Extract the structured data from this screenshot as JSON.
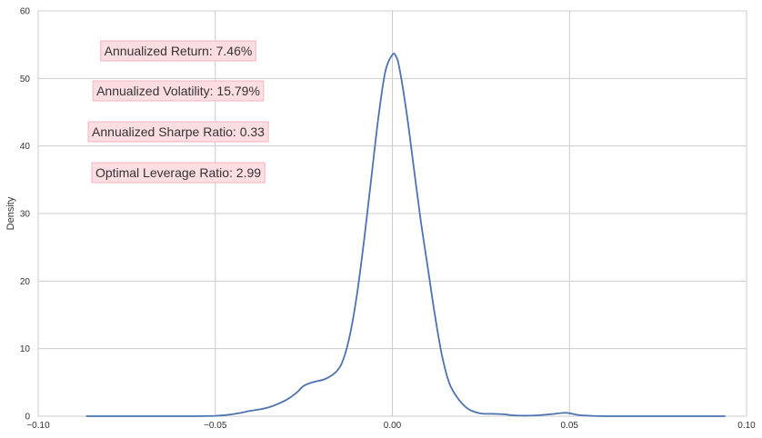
{
  "chart_data": {
    "type": "line",
    "title": "",
    "xlabel": "",
    "ylabel": "Density",
    "xlim": [
      -0.1,
      0.1
    ],
    "ylim": [
      0,
      60
    ],
    "grid": true,
    "x_ticks": [
      -0.1,
      -0.05,
      0.0,
      0.05,
      0.1
    ],
    "x_tick_labels": [
      "−0.10",
      "−0.05",
      "0.00",
      "0.05",
      "0.10"
    ],
    "y_ticks": [
      0,
      10,
      20,
      30,
      40,
      50,
      60
    ],
    "y_tick_labels": [
      "0",
      "10",
      "20",
      "30",
      "40",
      "50",
      "60"
    ],
    "series": [
      {
        "color": "#4c72b0",
        "x": [
          -0.0865,
          -0.07,
          -0.06,
          -0.05,
          -0.045,
          -0.04,
          -0.035,
          -0.03,
          -0.027,
          -0.025,
          -0.022,
          -0.019,
          -0.016,
          -0.014,
          -0.012,
          -0.01,
          -0.008,
          -0.006,
          -0.004,
          -0.002,
          0.0,
          0.001,
          0.002,
          0.004,
          0.006,
          0.008,
          0.01,
          0.012,
          0.014,
          0.016,
          0.018,
          0.02,
          0.022,
          0.025,
          0.028,
          0.031,
          0.035,
          0.04,
          0.045,
          0.049,
          0.053,
          0.06,
          0.07,
          0.08,
          0.094
        ],
        "y": [
          0,
          0,
          0,
          0.05,
          0.3,
          0.8,
          1.3,
          2.4,
          3.5,
          4.5,
          5.1,
          5.5,
          6.5,
          8.2,
          12,
          18,
          26,
          35,
          44,
          51,
          53.5,
          53.3,
          51.5,
          45,
          37,
          29,
          22,
          15,
          9,
          5,
          3,
          1.7,
          0.9,
          0.4,
          0.35,
          0.3,
          0.1,
          0.1,
          0.3,
          0.5,
          0.15,
          0,
          0,
          0,
          0
        ]
      }
    ],
    "annotations": [
      {
        "label": "Annualized Return:",
        "value": "7.46%"
      },
      {
        "label": "Annualized Volatility:",
        "value": "15.79%"
      },
      {
        "label": "Annualized Sharpe Ratio:",
        "value": "0.33"
      },
      {
        "label": "Optimal Leverage Ratio:",
        "value": "2.99"
      }
    ],
    "annotation_style": {
      "fill": "#fbdde2",
      "stroke": "#f2b6bf"
    }
  }
}
